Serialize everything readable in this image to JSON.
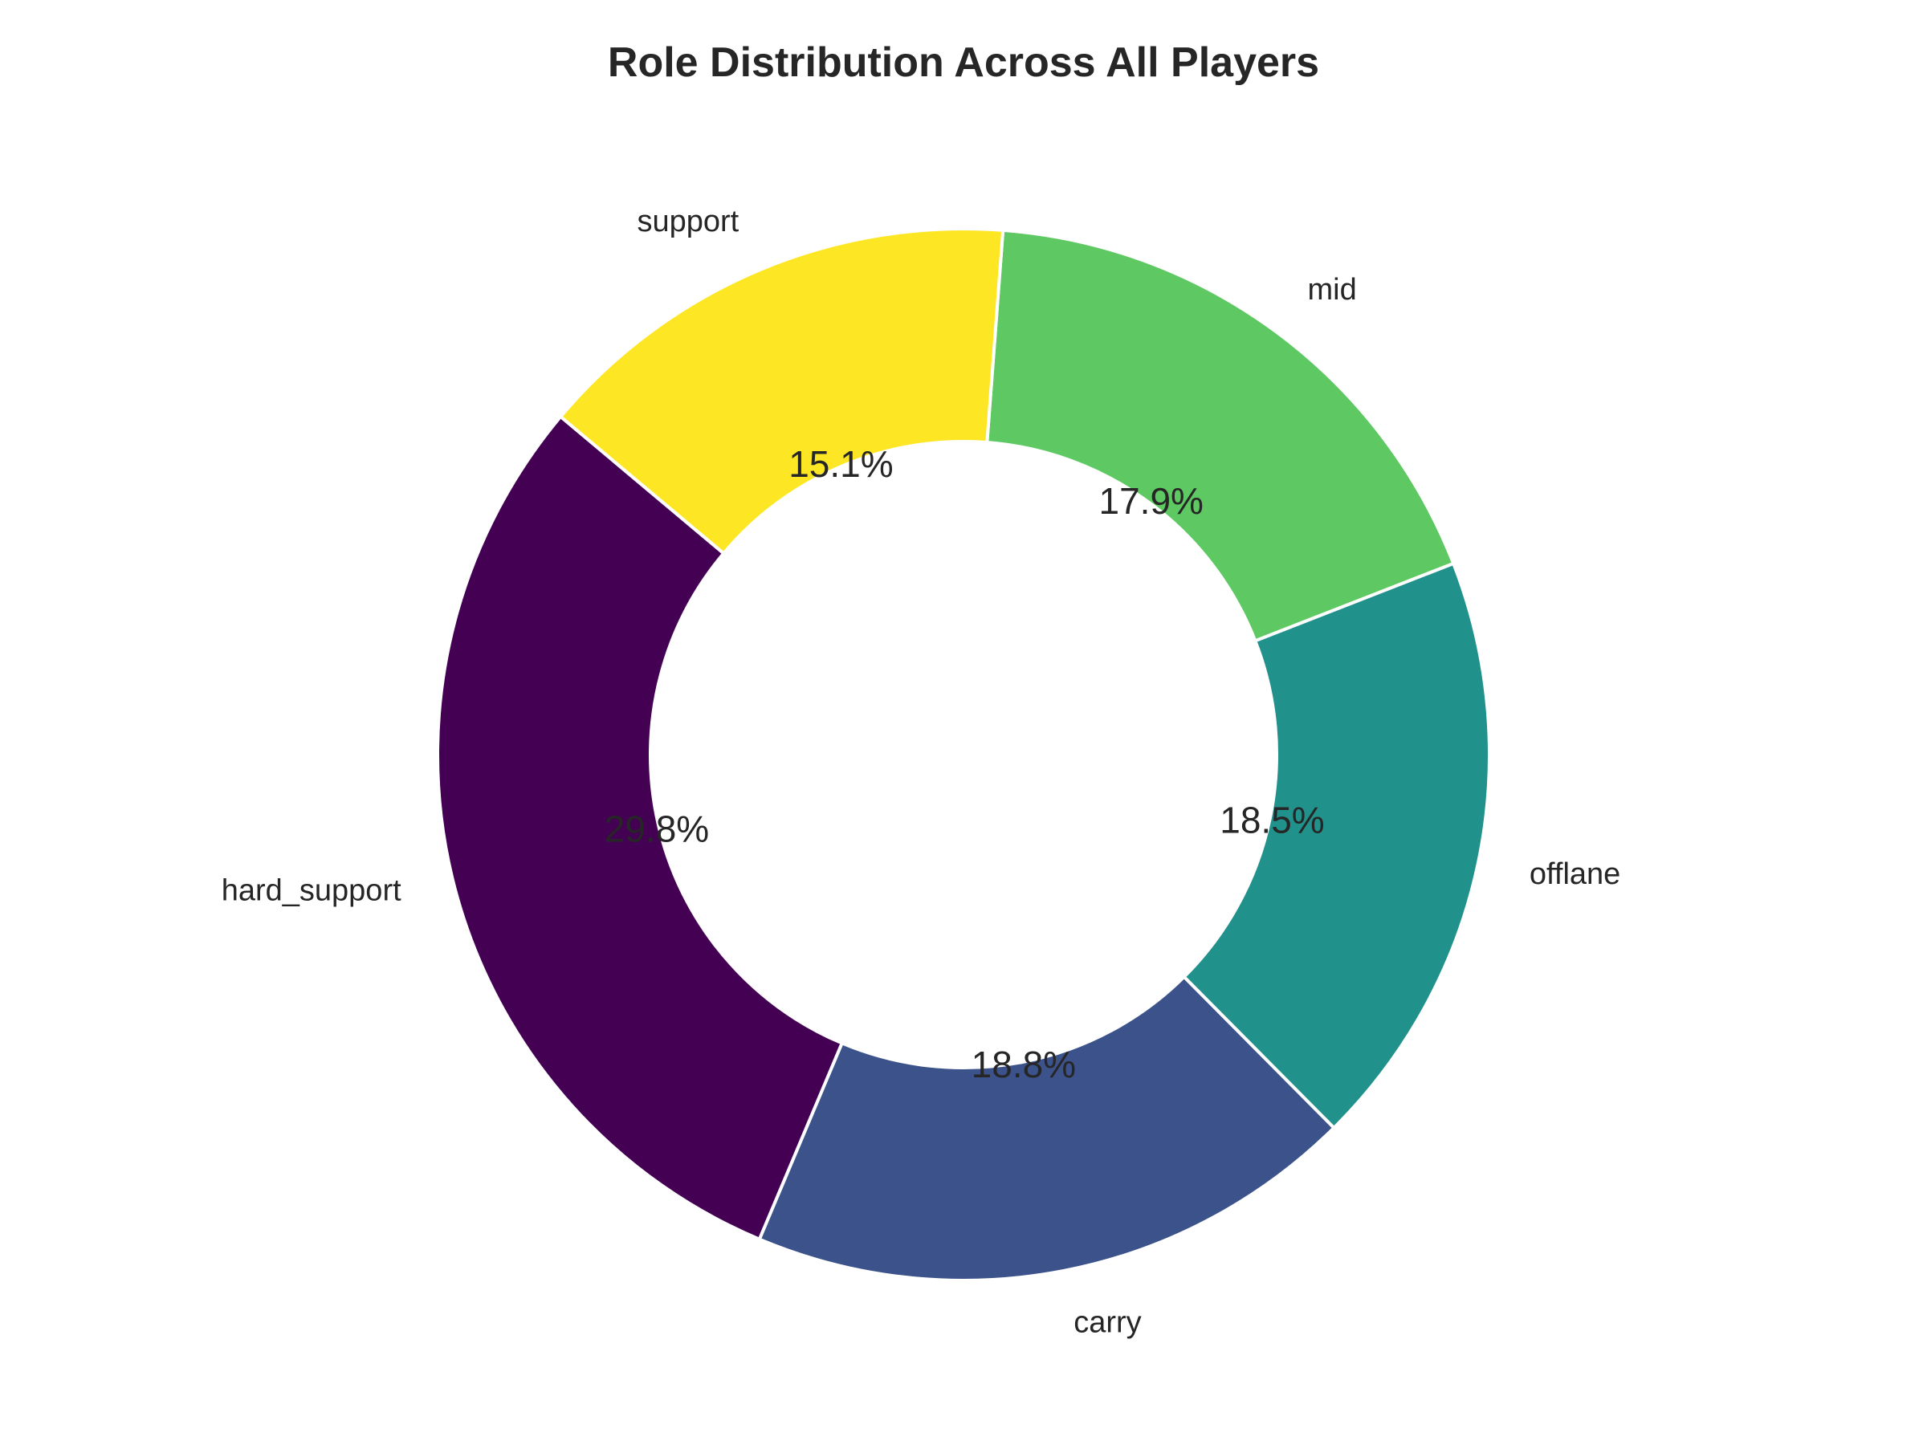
{
  "chart_data": {
    "type": "pie",
    "donut": true,
    "title": "Role Distribution Across All Players",
    "categories": [
      "hard_support",
      "carry",
      "offlane",
      "mid",
      "support"
    ],
    "values": [
      29.8,
      18.8,
      18.5,
      17.9,
      15.1
    ],
    "percent_labels": [
      "29.8%",
      "18.8%",
      "18.5%",
      "17.9%",
      "15.1%"
    ],
    "colors": [
      "#440154",
      "#3b528b",
      "#21918c",
      "#5ec962",
      "#fde725"
    ],
    "legend": "none"
  }
}
